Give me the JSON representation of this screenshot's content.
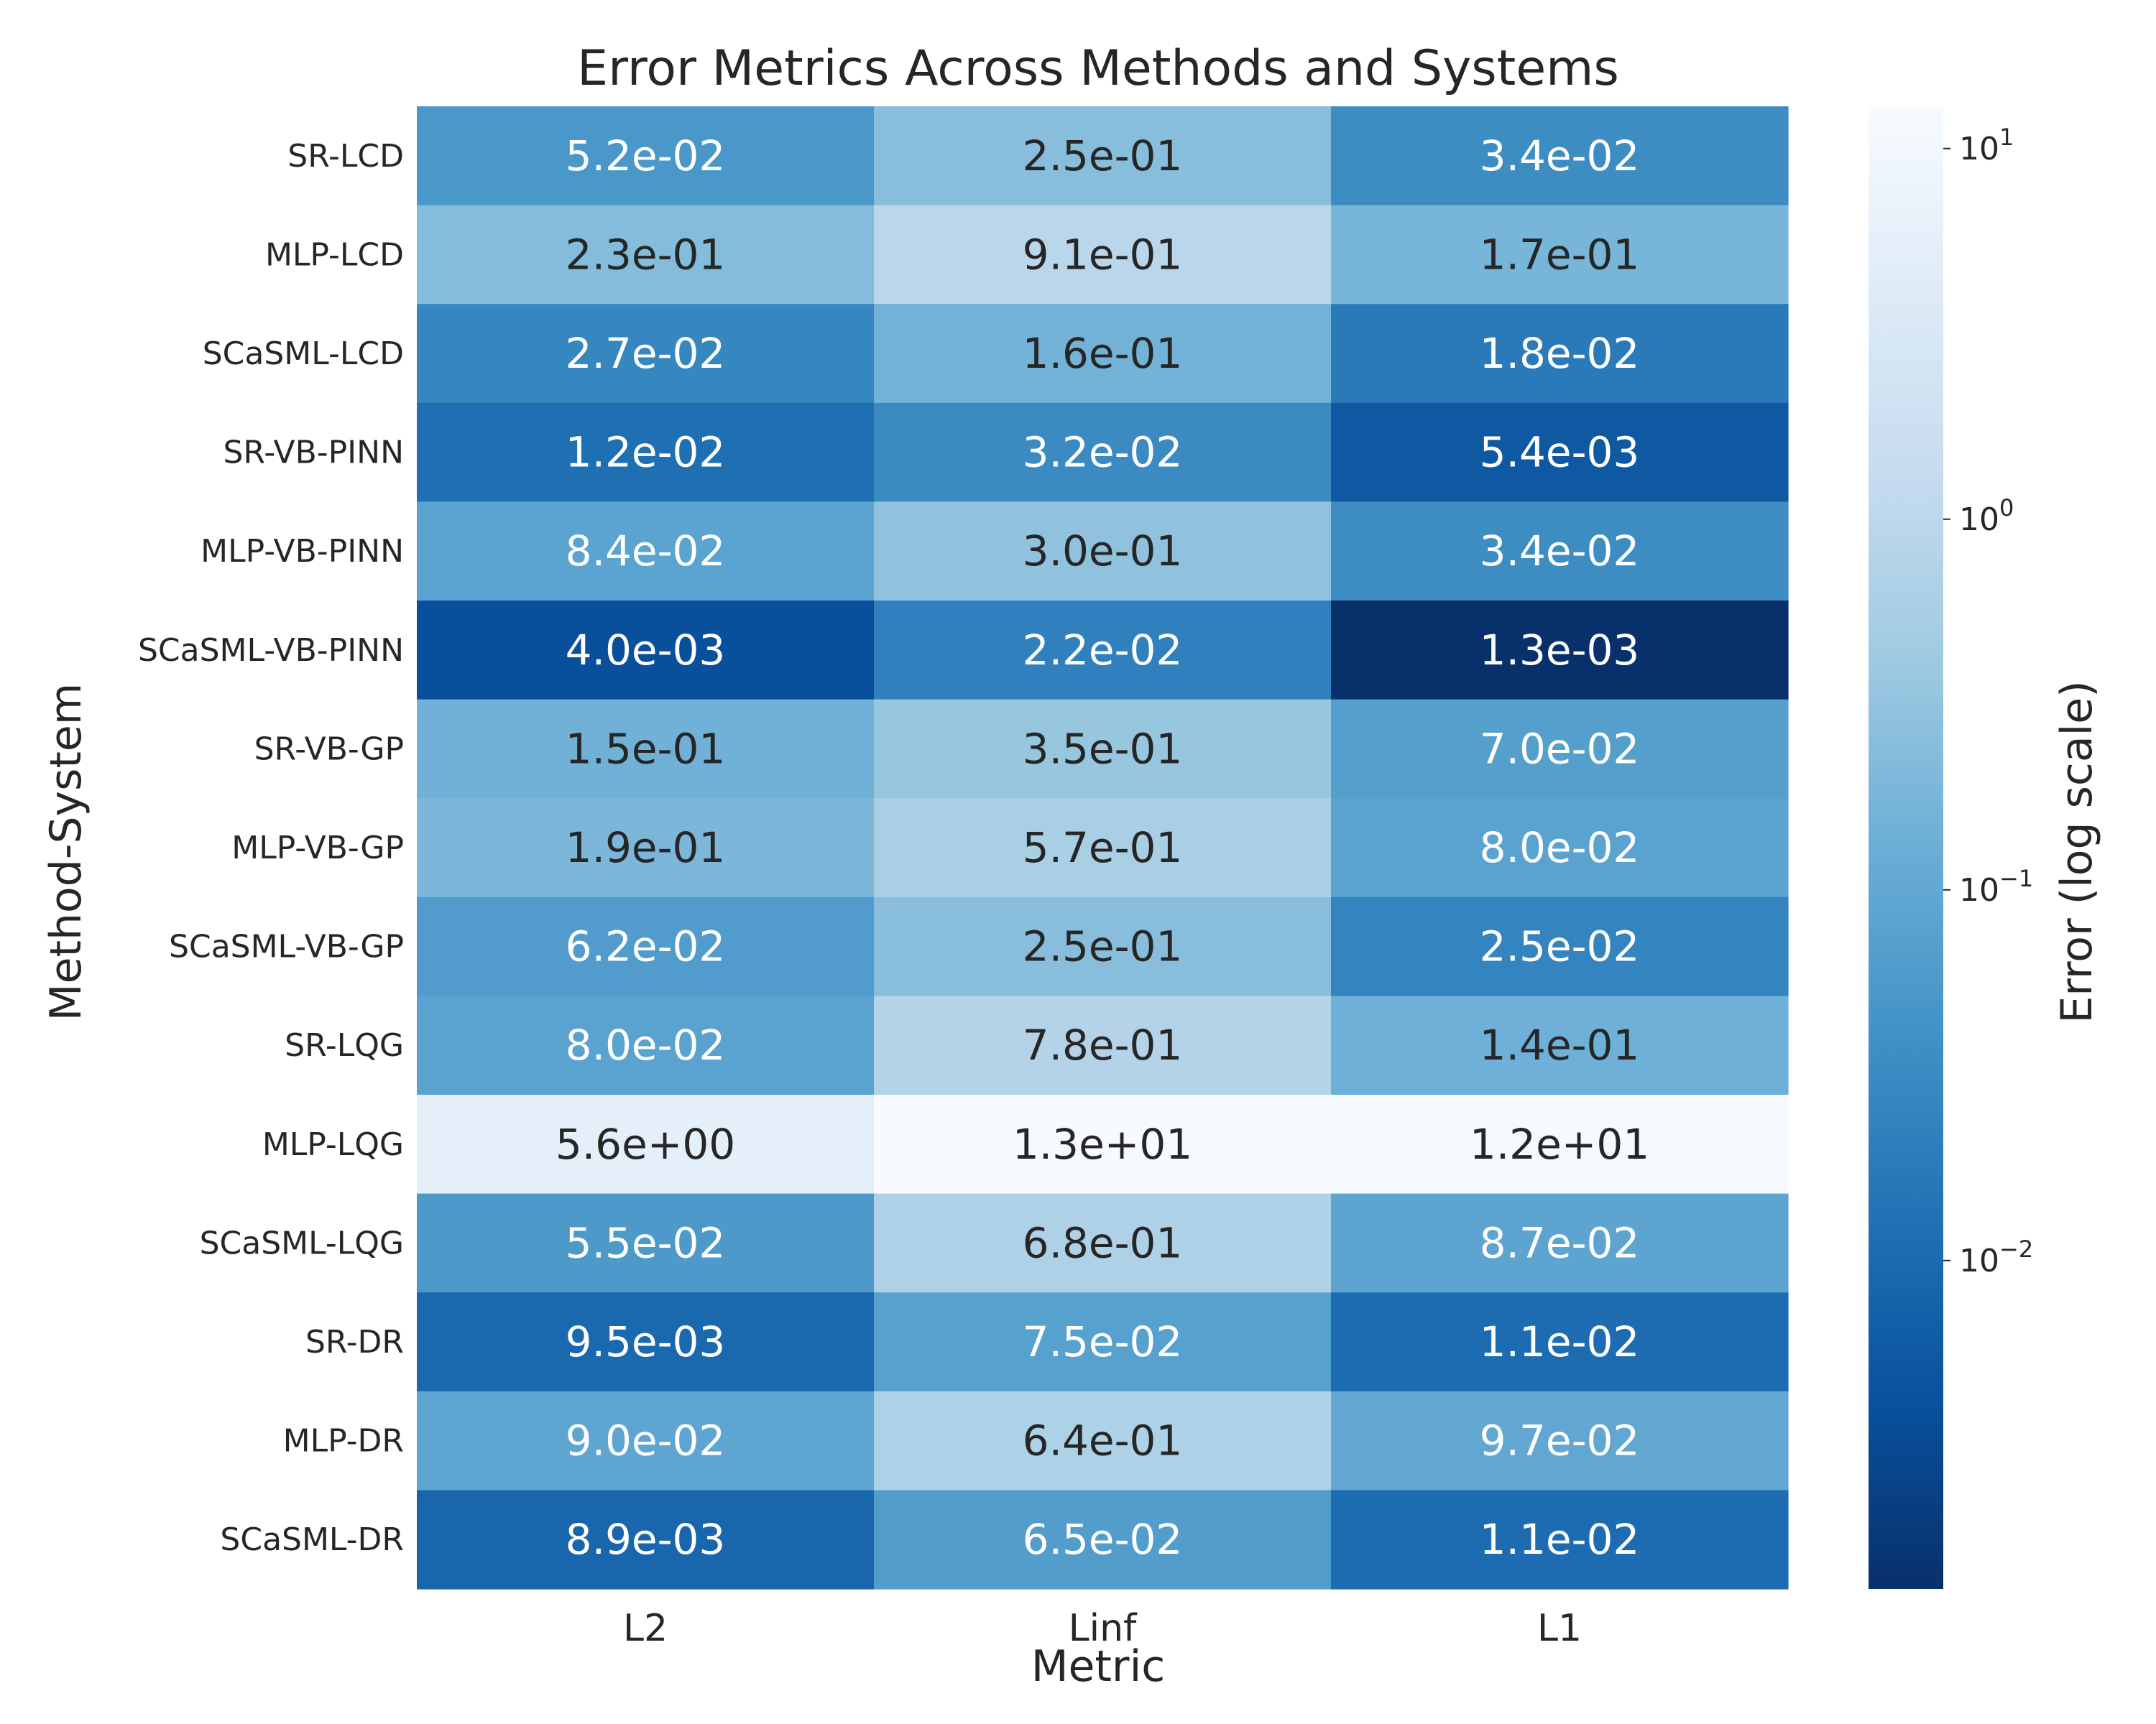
{
  "chart_data": {
    "type": "heatmap",
    "title": "Error Metrics Across Methods and Systems",
    "xlabel": "Metric",
    "ylabel": "Method-System",
    "x_categories": [
      "L2",
      "Linf",
      "L1"
    ],
    "y_categories": [
      "SR-LCD",
      "MLP-LCD",
      "SCaSML-LCD",
      "SR-VB-PINN",
      "MLP-VB-PINN",
      "SCaSML-VB-PINN",
      "SR-VB-GP",
      "MLP-VB-GP",
      "SCaSML-VB-GP",
      "SR-LQG",
      "MLP-LQG",
      "SCaSML-LQG",
      "SR-DR",
      "MLP-DR",
      "SCaSML-DR"
    ],
    "values": [
      [
        0.052,
        0.25,
        0.034
      ],
      [
        0.23,
        0.91,
        0.17
      ],
      [
        0.027,
        0.16,
        0.018
      ],
      [
        0.012,
        0.032,
        0.0054
      ],
      [
        0.084,
        0.3,
        0.034
      ],
      [
        0.004,
        0.022,
        0.0013
      ],
      [
        0.15,
        0.35,
        0.07
      ],
      [
        0.19,
        0.57,
        0.08
      ],
      [
        0.062,
        0.25,
        0.025
      ],
      [
        0.08,
        0.78,
        0.14
      ],
      [
        5.6,
        13,
        12
      ],
      [
        0.055,
        0.68,
        0.087
      ],
      [
        0.0095,
        0.075,
        0.011
      ],
      [
        0.09,
        0.64,
        0.097
      ],
      [
        0.0089,
        0.065,
        0.011
      ]
    ],
    "cell_labels": [
      [
        "5.2e-02",
        "2.5e-01",
        "3.4e-02"
      ],
      [
        "2.3e-01",
        "9.1e-01",
        "1.7e-01"
      ],
      [
        "2.7e-02",
        "1.6e-01",
        "1.8e-02"
      ],
      [
        "1.2e-02",
        "3.2e-02",
        "5.4e-03"
      ],
      [
        "8.4e-02",
        "3.0e-01",
        "3.4e-02"
      ],
      [
        "4.0e-03",
        "2.2e-02",
        "1.3e-03"
      ],
      [
        "1.5e-01",
        "3.5e-01",
        "7.0e-02"
      ],
      [
        "1.9e-01",
        "5.7e-01",
        "8.0e-02"
      ],
      [
        "6.2e-02",
        "2.5e-01",
        "2.5e-02"
      ],
      [
        "8.0e-02",
        "7.8e-01",
        "1.4e-01"
      ],
      [
        "5.6e+00",
        "1.3e+01",
        "1.2e+01"
      ],
      [
        "5.5e-02",
        "6.8e-01",
        "8.7e-02"
      ],
      [
        "9.5e-03",
        "7.5e-02",
        "1.1e-02"
      ],
      [
        "9.0e-02",
        "6.4e-01",
        "9.7e-02"
      ],
      [
        "8.9e-03",
        "6.5e-02",
        "1.1e-02"
      ]
    ],
    "colorbar": {
      "label": "Error (log scale)",
      "scale": "log",
      "range": [
        0.0013,
        13
      ],
      "ticks": [
        0.01,
        0.1,
        1,
        10
      ],
      "tick_bases": [
        "10",
        "10",
        "10",
        "10"
      ],
      "tick_exponents": [
        "−2",
        "−1",
        "0",
        "1"
      ],
      "colormap": "Blues"
    },
    "grid": false,
    "colors": {
      "cmap_stops": [
        "#f7fbff",
        "#deebf7",
        "#c6dbef",
        "#9ecae1",
        "#6baed6",
        "#4292c6",
        "#2171b5",
        "#08519c",
        "#08306b"
      ],
      "text_dark": "#262626",
      "text_light": "#ffffff"
    }
  }
}
